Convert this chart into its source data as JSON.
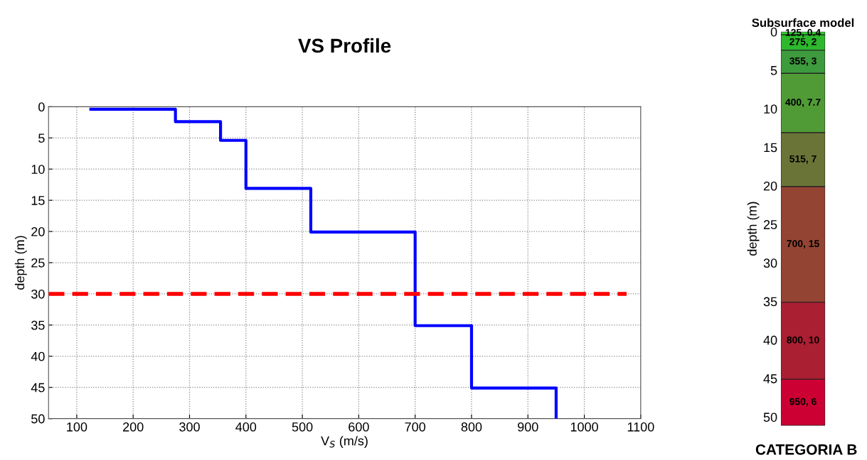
{
  "chart_data": [
    {
      "type": "line",
      "title": "VS Profile",
      "xlabel": "V$_{S}$ (m/s)",
      "ylabel": "depth (m)",
      "xlim": [
        50,
        1100
      ],
      "xticks": [
        100,
        200,
        300,
        400,
        500,
        600,
        700,
        800,
        900,
        1000,
        1100
      ],
      "ylim": [
        50,
        0
      ],
      "yticks": [
        0,
        5,
        10,
        15,
        20,
        25,
        30,
        35,
        40,
        45,
        50
      ],
      "grid": true,
      "legend": false,
      "series": [
        {
          "color": "#0000ff",
          "line_style": "solid",
          "x": [
            125,
            275,
            275,
            355,
            355,
            400,
            400,
            515,
            515,
            700,
            700,
            800,
            800,
            950,
            950
          ],
          "values": [
            0.4,
            0.4,
            2.4,
            2.4,
            5.4,
            5.4,
            13.1,
            13.1,
            20.1,
            20.1,
            35.1,
            35.1,
            45.1,
            45.1,
            50
          ]
        },
        {
          "color": "#ff0000",
          "line_style": "dashed",
          "x": [
            50,
            1075
          ],
          "values": [
            30,
            30
          ]
        }
      ]
    },
    {
      "type": "bar",
      "title": "Subsurface model",
      "ylabel": "depth (m)",
      "categories": [
        null
      ],
      "stacked": true,
      "ylim": [
        51.1,
        0
      ],
      "yticks": [
        0,
        5,
        10,
        15,
        20,
        25,
        30,
        35,
        40,
        45,
        50
      ],
      "annotations": [
        "CATEGORIA B"
      ],
      "series": [
        {
          "color": "#33cc33",
          "values": [
            0.4
          ],
          "value_labels": [
            "125, 0.4"
          ]
        },
        {
          "color": "#2eb82e",
          "values": [
            2
          ],
          "value_labels": [
            "275, 2"
          ]
        },
        {
          "color": "#3d9a3d",
          "values": [
            3
          ],
          "value_labels": [
            "355, 3"
          ]
        },
        {
          "color": "#519b37",
          "values": [
            7.7
          ],
          "value_labels": [
            "400, 7.7"
          ]
        },
        {
          "color": "#697436",
          "values": [
            7
          ],
          "value_labels": [
            "515, 7"
          ]
        },
        {
          "color": "#944432",
          "values": [
            15
          ],
          "value_labels": [
            "700, 15"
          ]
        },
        {
          "color": "#ab1f33",
          "values": [
            10
          ],
          "value_labels": [
            "800, 10"
          ]
        },
        {
          "color": "#cc0033",
          "values": [
            6
          ],
          "value_labels": [
            "950, 6"
          ]
        }
      ]
    }
  ]
}
